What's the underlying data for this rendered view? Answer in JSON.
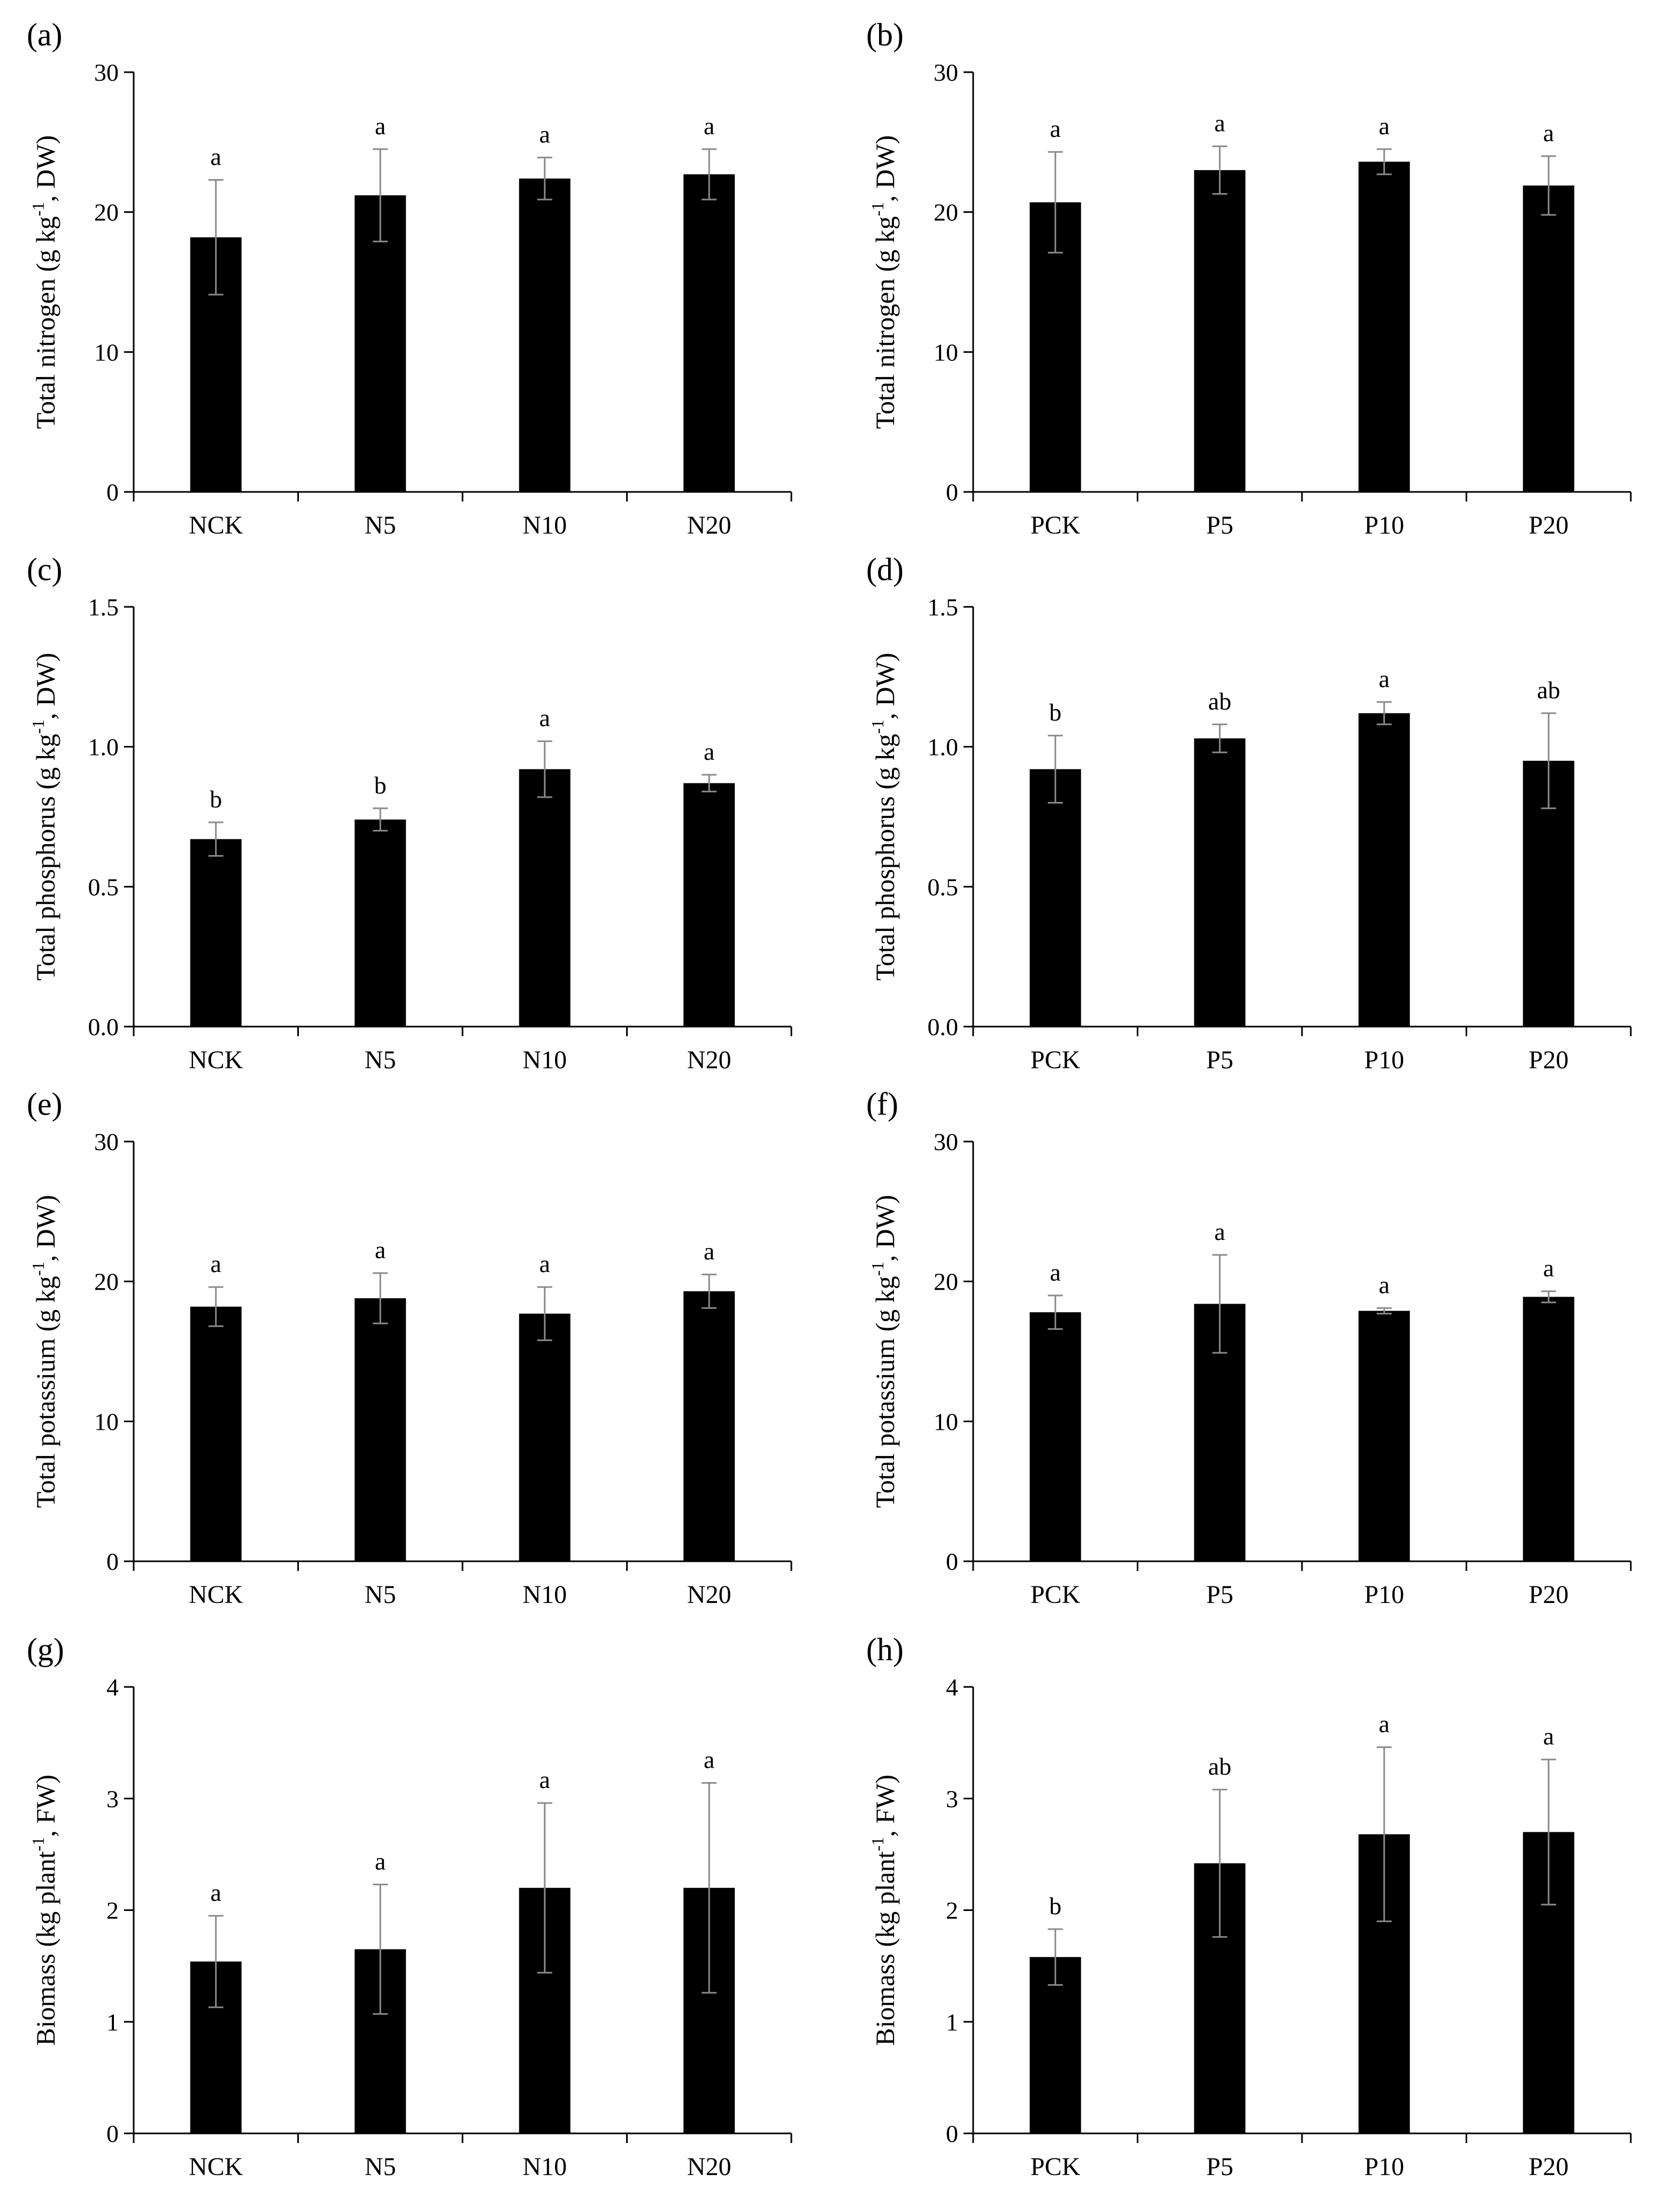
{
  "chart_data": [
    {
      "panel_label": "(a)",
      "type": "bar",
      "ylabel": {
        "pre": "Total nitrogen (g kg",
        "sup": "-1",
        "post": ", DW)"
      },
      "ylim": [
        0,
        30
      ],
      "yticks": [
        "0",
        "10",
        "20",
        "30"
      ],
      "categories": [
        "NCK",
        "N5",
        "N10",
        "N20"
      ],
      "values": [
        18.2,
        21.2,
        22.4,
        22.7
      ],
      "errors": [
        4.1,
        3.3,
        1.5,
        1.8
      ],
      "significance": [
        "a",
        "a",
        "a",
        "a"
      ]
    },
    {
      "panel_label": "(b)",
      "type": "bar",
      "ylabel": {
        "pre": "Total nitrogen (g kg",
        "sup": "-1",
        "post": ", DW)"
      },
      "ylim": [
        0,
        30
      ],
      "yticks": [
        "0",
        "10",
        "20",
        "30"
      ],
      "categories": [
        "PCK",
        "P5",
        "P10",
        "P20"
      ],
      "values": [
        20.7,
        23.0,
        23.6,
        21.9
      ],
      "errors": [
        3.6,
        1.7,
        0.9,
        2.1
      ],
      "significance": [
        "a",
        "a",
        "a",
        "a"
      ]
    },
    {
      "panel_label": "(c)",
      "type": "bar",
      "ylabel": {
        "pre": "Total phosphorus (g kg",
        "sup": "-1",
        "post": ", DW)"
      },
      "ylim": [
        0,
        1.5
      ],
      "yticks": [
        "0.0",
        "0.5",
        "1.0",
        "1.5"
      ],
      "categories": [
        "NCK",
        "N5",
        "N10",
        "N20"
      ],
      "values": [
        0.67,
        0.74,
        0.92,
        0.87
      ],
      "errors": [
        0.06,
        0.04,
        0.1,
        0.03
      ],
      "significance": [
        "b",
        "b",
        "a",
        "a"
      ]
    },
    {
      "panel_label": "(d)",
      "type": "bar",
      "ylabel": {
        "pre": "Total phosphorus (g kg",
        "sup": "-1",
        "post": ", DW)"
      },
      "ylim": [
        0,
        1.5
      ],
      "yticks": [
        "0.0",
        "0.5",
        "1.0",
        "1.5"
      ],
      "categories": [
        "PCK",
        "P5",
        "P10",
        "P20"
      ],
      "values": [
        0.92,
        1.03,
        1.12,
        0.95
      ],
      "errors": [
        0.12,
        0.05,
        0.04,
        0.17
      ],
      "significance": [
        "b",
        "ab",
        "a",
        "ab"
      ]
    },
    {
      "panel_label": "(e)",
      "type": "bar",
      "ylabel": {
        "pre": "Total potassium (g kg",
        "sup": "-1",
        "post": ", DW)"
      },
      "ylim": [
        0,
        30
      ],
      "yticks": [
        "0",
        "10",
        "20",
        "30"
      ],
      "categories": [
        "NCK",
        "N5",
        "N10",
        "N20"
      ],
      "values": [
        18.2,
        18.8,
        17.7,
        19.3
      ],
      "errors": [
        1.4,
        1.8,
        1.9,
        1.2
      ],
      "significance": [
        "a",
        "a",
        "a",
        "a"
      ]
    },
    {
      "panel_label": "(f)",
      "type": "bar",
      "ylabel": {
        "pre": "Total potassium (g kg",
        "sup": "-1",
        "post": ", DW)"
      },
      "ylim": [
        0,
        30
      ],
      "yticks": [
        "0",
        "10",
        "20",
        "30"
      ],
      "categories": [
        "PCK",
        "P5",
        "P10",
        "P20"
      ],
      "values": [
        17.8,
        18.4,
        17.9,
        18.9
      ],
      "errors": [
        1.2,
        3.5,
        0.2,
        0.4
      ],
      "significance": [
        "a",
        "a",
        "a",
        "a"
      ]
    },
    {
      "panel_label": "(g)",
      "type": "bar",
      "ylabel": {
        "pre": "Biomass (kg plant",
        "sup": "-1",
        "post": ", FW)"
      },
      "ylim": [
        0,
        4
      ],
      "yticks": [
        "0",
        "1",
        "2",
        "3",
        "4"
      ],
      "categories": [
        "NCK",
        "N5",
        "N10",
        "N20"
      ],
      "values": [
        1.54,
        1.65,
        2.2,
        2.2
      ],
      "errors": [
        0.41,
        0.58,
        0.76,
        0.94
      ],
      "significance": [
        "a",
        "a",
        "a",
        "a"
      ]
    },
    {
      "panel_label": "(h)",
      "type": "bar",
      "ylabel": {
        "pre": "Biomass (kg plant",
        "sup": "-1",
        "post": ", FW)"
      },
      "ylim": [
        0,
        4
      ],
      "yticks": [
        "0",
        "1",
        "2",
        "3",
        "4"
      ],
      "categories": [
        "PCK",
        "P5",
        "P10",
        "P20"
      ],
      "values": [
        1.58,
        2.42,
        2.68,
        2.7
      ],
      "errors": [
        0.25,
        0.66,
        0.78,
        0.65
      ],
      "significance": [
        "b",
        "ab",
        "a",
        "a"
      ]
    }
  ]
}
